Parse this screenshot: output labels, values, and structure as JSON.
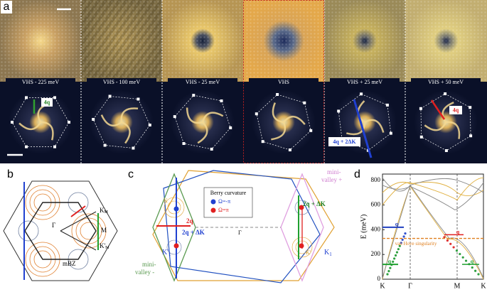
{
  "panel_a": {
    "label": "a",
    "energies": [
      "VHS - 225 meV",
      "VHS - 100 meV",
      "VHS - 25 meV",
      "VHS",
      "VHS + 25 meV",
      "VHS + 50 meV"
    ],
    "annotations": [
      "4q",
      "4q",
      "4q + 2ΔK"
    ]
  },
  "panel_b": {
    "label": "b",
    "points": [
      {
        "base": "K",
        "sub": "M"
      },
      {
        "base": "M",
        "sub": ""
      },
      {
        "base": "K'",
        "sub": "M"
      },
      {
        "base": "Γ",
        "sub": ""
      },
      {
        "base": "mBZ",
        "sub": ""
      }
    ]
  },
  "panel_c": {
    "label": "c",
    "legend_title": "Berry curvature",
    "legend": [
      "Ω=-π",
      "Ω=π"
    ],
    "arrows": [
      "2q",
      "2q + ΔK",
      "2q + ΔK"
    ],
    "gamma": "Γ",
    "valleys": [
      {
        "base": "K'",
        "sub": "1"
      },
      {
        "base": "K",
        "sub": "1"
      }
    ],
    "small_points": [
      "K",
      "K'"
    ],
    "minus_valley": [
      "mini-",
      "valley -"
    ],
    "plus_valley": [
      "mini-",
      "valley +"
    ]
  },
  "panel_d": {
    "label": "d",
    "ylabel": "E (meV)",
    "ylim": [
      0,
      850
    ],
    "yticks": [
      0,
      200,
      400,
      600,
      800
    ],
    "xlabels": [
      "K",
      "Γ",
      "M",
      "K"
    ],
    "vhs_label": "van Hove singularity",
    "vhs_energy": 330,
    "q_labels": [
      "q",
      "q",
      "q",
      "q"
    ]
  }
}
